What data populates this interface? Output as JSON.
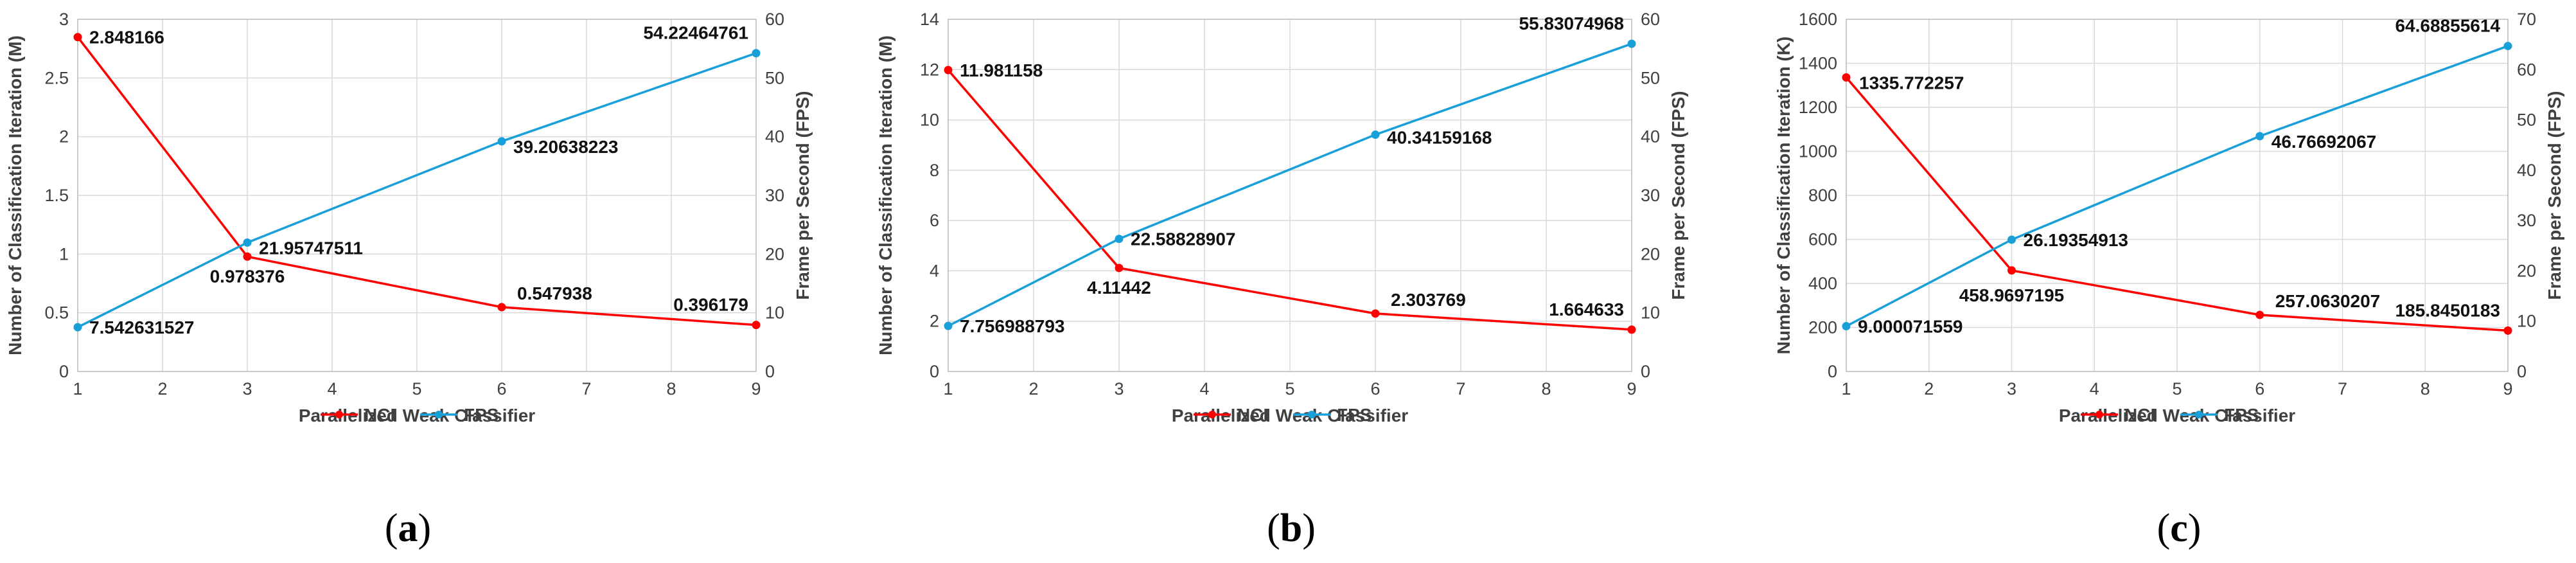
{
  "colors": {
    "nci": "#ff0000",
    "fps": "#1aa0d8",
    "grid": "#d9d9d9",
    "axis": "#bfbfbf"
  },
  "legend": {
    "nci_label": "NCI",
    "fps_label": "FPS"
  },
  "chart_data": [
    {
      "type": "line",
      "caption_letter": "a",
      "xlabel": "Parallelized Weak Classifier",
      "ylabel_left": "Number of Classification Iteration (M)",
      "ylabel_right": "Frame per Second (FPS)",
      "xlim": [
        1,
        9
      ],
      "xticks": [
        "1",
        "2",
        "3",
        "4",
        "5",
        "6",
        "7",
        "8",
        "9"
      ],
      "ylim_left": [
        0,
        3
      ],
      "yticks_left": [
        "0",
        "0.5",
        "1",
        "1.5",
        "2",
        "2.5",
        "3"
      ],
      "ylim_right": [
        0,
        60
      ],
      "yticks_right": [
        "0",
        "10",
        "20",
        "30",
        "40",
        "50",
        "60"
      ],
      "series": [
        {
          "name": "NCI",
          "axis": "left",
          "x": [
            1,
            3,
            6,
            9
          ],
          "values": [
            2.848166,
            0.978376,
            0.547938,
            0.396179
          ],
          "labels": [
            "2.848166",
            "0.978376",
            "0.547938",
            "0.396179"
          ]
        },
        {
          "name": "FPS",
          "axis": "right",
          "x": [
            1,
            3,
            6,
            9
          ],
          "values": [
            7.542631527,
            21.95747511,
            39.20638223,
            54.22464761
          ],
          "labels": [
            "7.542631527",
            "21.95747511",
            "39.20638223",
            "54.22464761"
          ]
        }
      ]
    },
    {
      "type": "line",
      "caption_letter": "b",
      "xlabel": "Parallelized Weak Classifier",
      "ylabel_left": "Number of Classification Iteration (M)",
      "ylabel_right": "Frame per Second (FPS)",
      "xlim": [
        1,
        9
      ],
      "xticks": [
        "1",
        "2",
        "3",
        "4",
        "5",
        "6",
        "7",
        "8",
        "9"
      ],
      "ylim_left": [
        0,
        14
      ],
      "yticks_left": [
        "0",
        "2",
        "4",
        "6",
        "8",
        "10",
        "12",
        "14"
      ],
      "ylim_right": [
        0,
        60
      ],
      "yticks_right": [
        "0",
        "10",
        "20",
        "30",
        "40",
        "50",
        "60"
      ],
      "series": [
        {
          "name": "NCI",
          "axis": "left",
          "x": [
            1,
            3,
            6,
            9
          ],
          "values": [
            11.981158,
            4.11442,
            2.303769,
            1.664633
          ],
          "labels": [
            "11.981158",
            "4.11442",
            "2.303769",
            "1.664633"
          ]
        },
        {
          "name": "FPS",
          "axis": "right",
          "x": [
            1,
            3,
            6,
            9
          ],
          "values": [
            7.756988793,
            22.58828907,
            40.34159168,
            55.83074968
          ],
          "labels": [
            "7.756988793",
            "22.58828907",
            "40.34159168",
            "55.83074968"
          ]
        }
      ]
    },
    {
      "type": "line",
      "caption_letter": "c",
      "xlabel": "Parallelized Weak Classifier",
      "ylabel_left": "Number of Classification Iteration (K)",
      "ylabel_right": "Frame per Second (FPS)",
      "xlim": [
        1,
        9
      ],
      "xticks": [
        "1",
        "2",
        "3",
        "4",
        "5",
        "6",
        "7",
        "8",
        "9"
      ],
      "ylim_left": [
        0,
        1600
      ],
      "yticks_left": [
        "0",
        "200",
        "400",
        "600",
        "800",
        "1000",
        "1200",
        "1400",
        "1600"
      ],
      "ylim_right": [
        0,
        70
      ],
      "yticks_right": [
        "0",
        "10",
        "20",
        "30",
        "40",
        "50",
        "60",
        "70"
      ],
      "series": [
        {
          "name": "NCI",
          "axis": "left",
          "x": [
            1,
            3,
            6,
            9
          ],
          "values": [
            1335.772257,
            458.9697195,
            257.0630207,
            185.8450183
          ],
          "labels": [
            "1335.772257",
            "458.9697195",
            "257.0630207",
            "185.8450183"
          ]
        },
        {
          "name": "FPS",
          "axis": "right",
          "x": [
            1,
            3,
            6,
            9
          ],
          "values": [
            9.000071559,
            26.19354913,
            46.76692067,
            64.68855614
          ],
          "labels": [
            "9.000071559",
            "26.19354913",
            "46.76692067",
            "64.68855614"
          ]
        }
      ]
    }
  ]
}
